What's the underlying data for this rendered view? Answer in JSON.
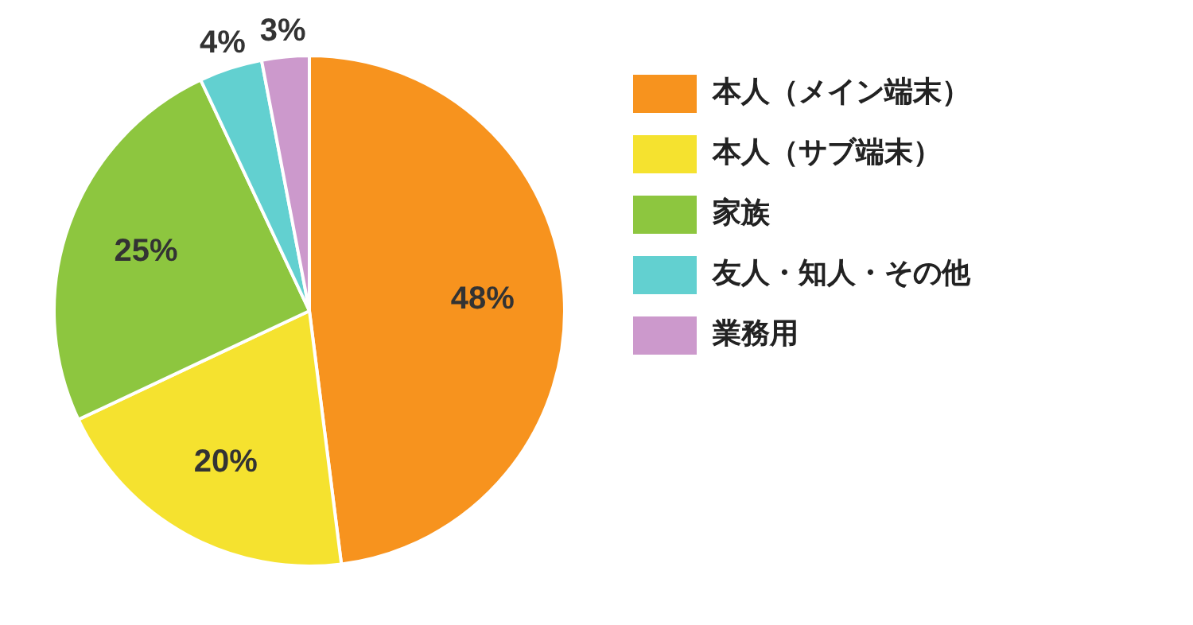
{
  "chart_data": {
    "type": "pie",
    "categories": [
      "本人（メイン端末）",
      "本人（サブ端末）",
      "家族",
      "友人・知人・その他",
      "業務用"
    ],
    "values": [
      48,
      20,
      25,
      4,
      3
    ],
    "colors": [
      "#f7931e",
      "#f5e22f",
      "#8dc63f",
      "#62d0d0",
      "#cc99cc"
    ],
    "value_labels": [
      "48%",
      "20%",
      "25%",
      "4%",
      "3%"
    ],
    "legend": "right"
  }
}
